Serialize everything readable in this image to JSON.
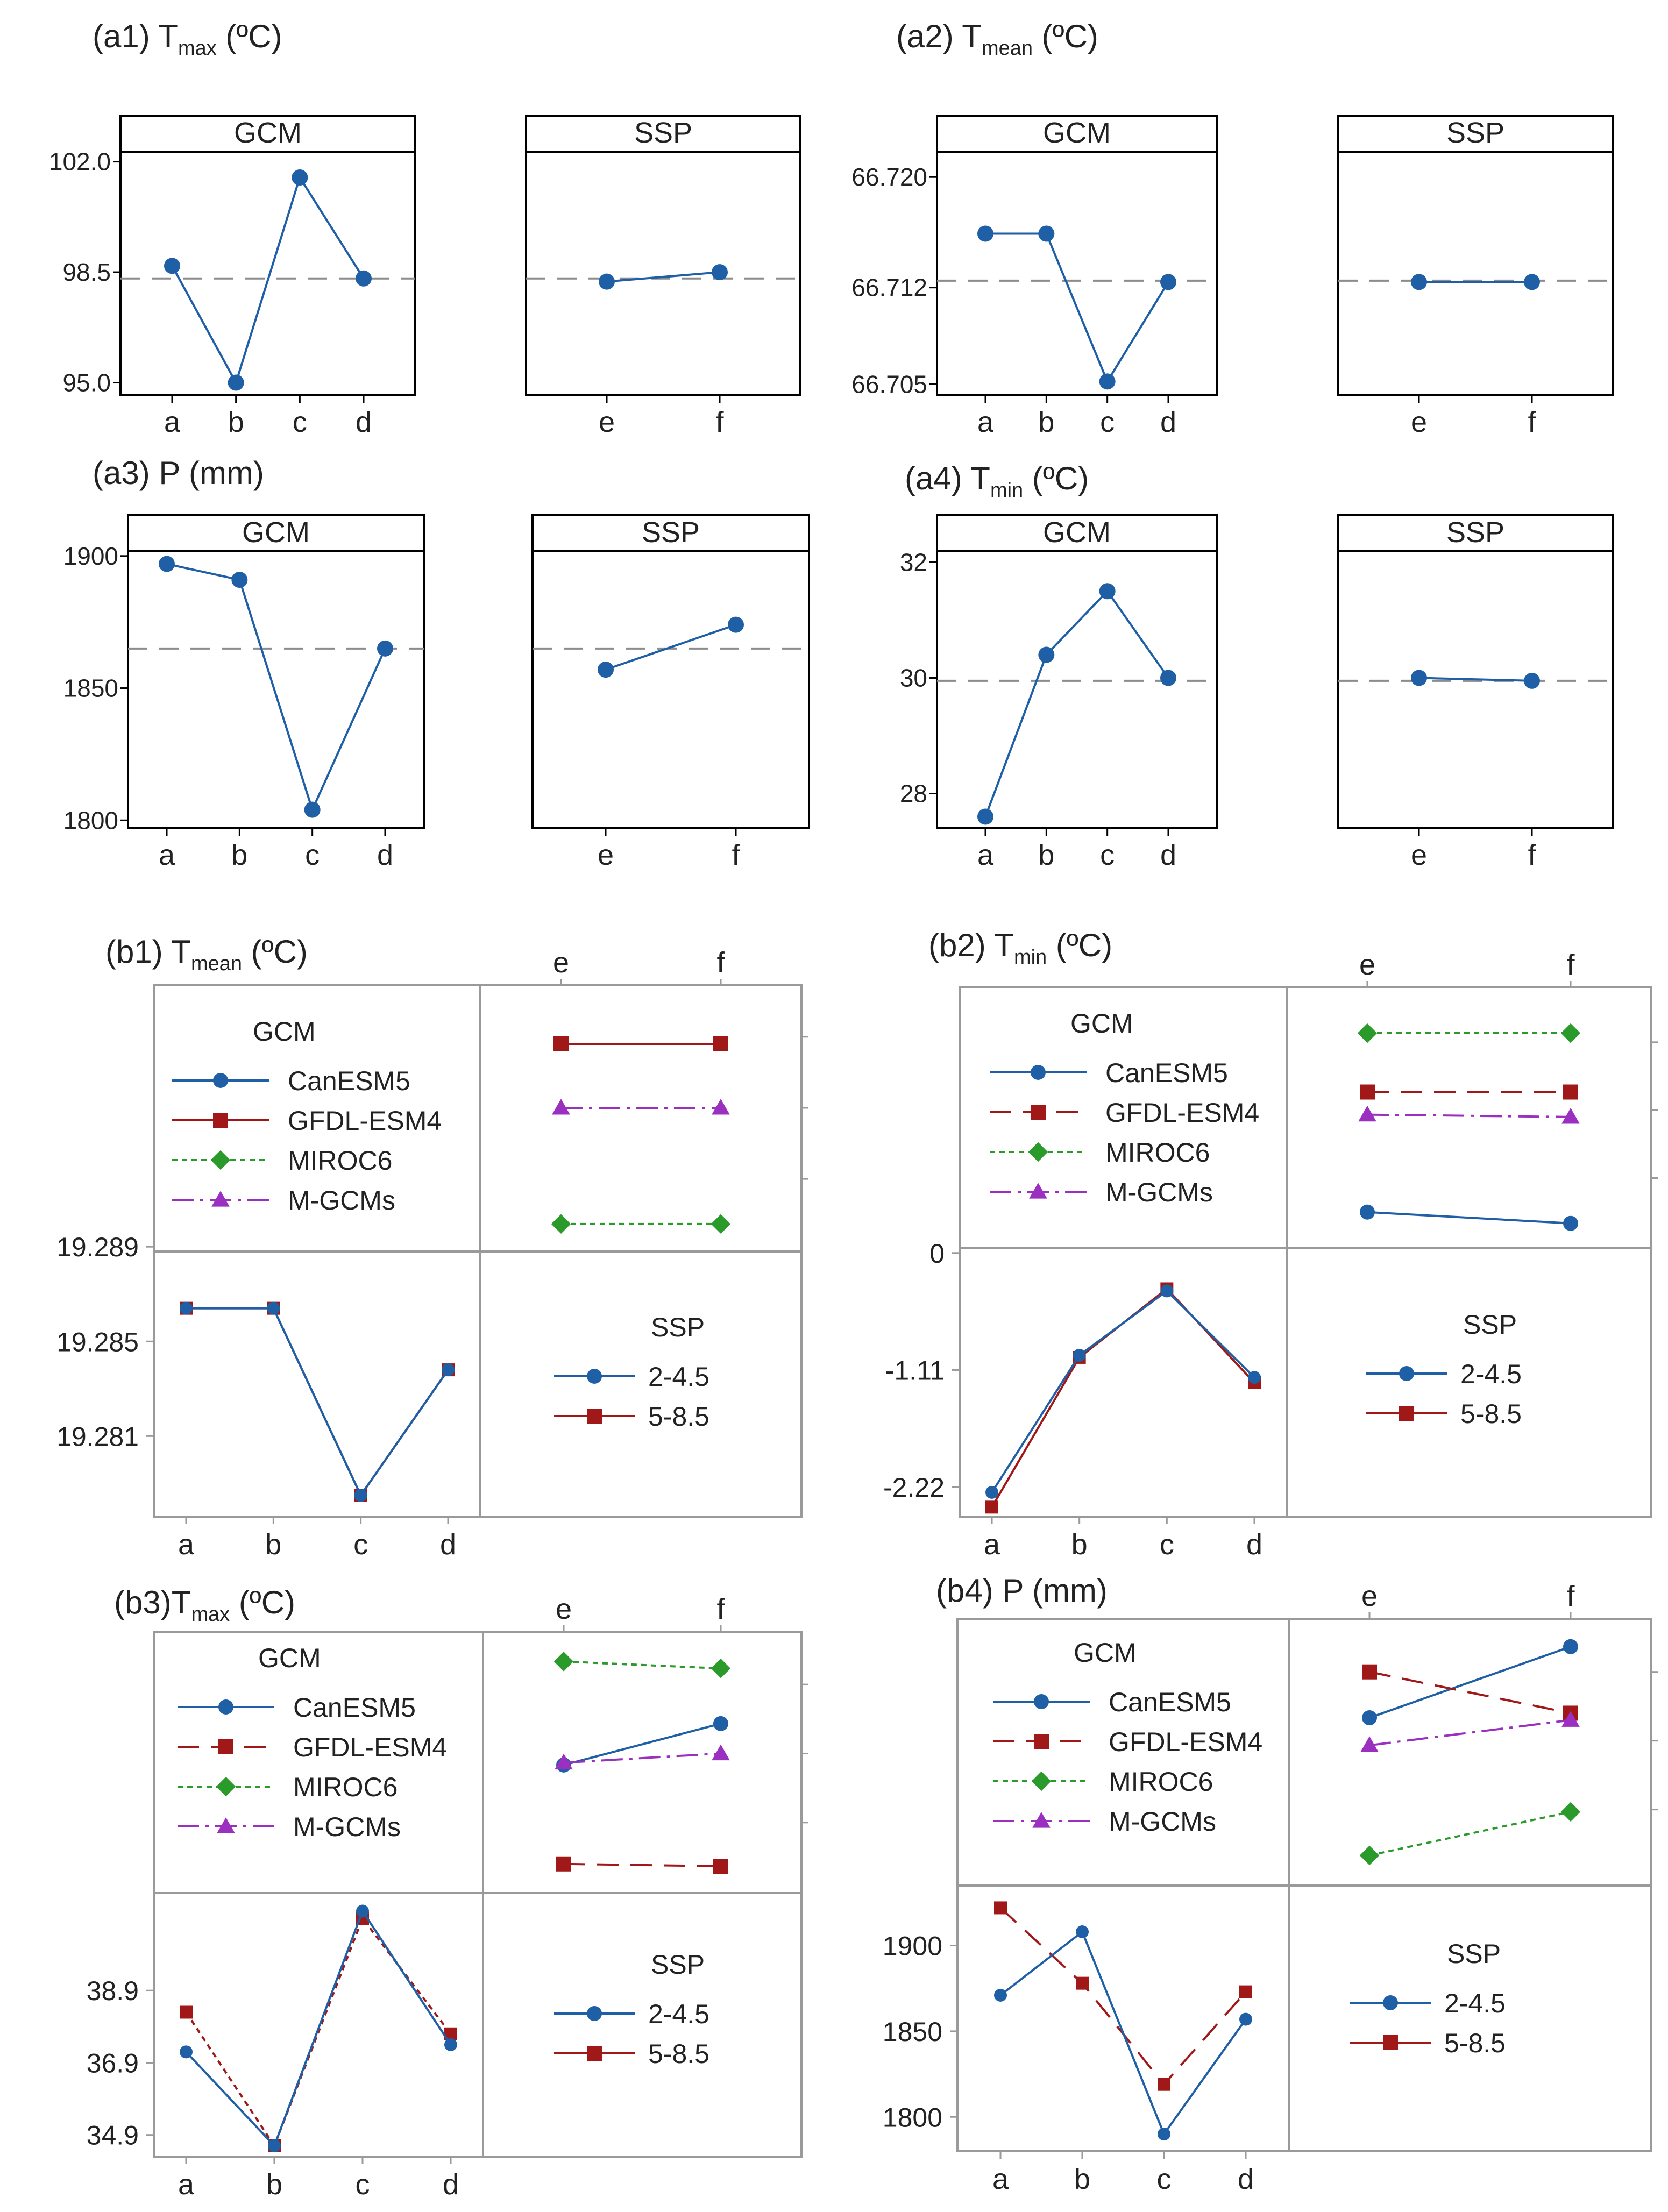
{
  "colors": {
    "blue": "#1f5fa6",
    "red": "#a01818",
    "green": "#2a9a2a",
    "purple": "#9b30c0",
    "ref_line": "#8c8c8c",
    "frame": "#000000",
    "grid_frame": "#9a9a9a"
  },
  "chart_data": [
    {
      "id": "a1",
      "type": "line",
      "title": {
        "prefix": "(a1) T",
        "sub": "max",
        "suffix": " (ºC)"
      },
      "panels": [
        {
          "header": "GCM",
          "categories": [
            "a",
            "b",
            "c",
            "d"
          ],
          "values": [
            98.7,
            95.0,
            101.5,
            98.3
          ]
        },
        {
          "header": "SSP",
          "categories": [
            "e",
            "f"
          ],
          "values": [
            98.2,
            98.5
          ]
        }
      ],
      "mean": 98.3,
      "ylim": [
        94.6,
        102.3
      ],
      "yticks": [
        95.0,
        98.5,
        102.0
      ],
      "ytick_labels": [
        "95.0",
        "98.5",
        "102.0"
      ]
    },
    {
      "id": "a2",
      "type": "line",
      "title": {
        "prefix": "(a2) T",
        "sub": "mean",
        "suffix": " (ºC)"
      },
      "panels": [
        {
          "header": "GCM",
          "categories": [
            "a",
            "b",
            "c",
            "d"
          ],
          "values": [
            66.7159,
            66.7159,
            66.7052,
            66.7124
          ]
        },
        {
          "header": "SSP",
          "categories": [
            "e",
            "f"
          ],
          "values": [
            66.7124,
            66.7124
          ]
        }
      ],
      "mean": 66.7125,
      "ylim": [
        66.7042,
        66.7218
      ],
      "yticks": [
        66.705,
        66.712,
        66.72
      ],
      "ytick_labels": [
        "66.705",
        "66.712",
        "66.720"
      ]
    },
    {
      "id": "a3",
      "type": "line",
      "title": {
        "prefix": "(a3) P (mm)",
        "sub": "",
        "suffix": ""
      },
      "panels": [
        {
          "header": "GCM",
          "categories": [
            "a",
            "b",
            "c",
            "d"
          ],
          "values": [
            1897,
            1891,
            1804,
            1865
          ]
        },
        {
          "header": "SSP",
          "categories": [
            "e",
            "f"
          ],
          "values": [
            1857,
            1874
          ]
        }
      ],
      "mean": 1865,
      "ylim": [
        1797,
        1902
      ],
      "yticks": [
        1800,
        1850,
        1900
      ],
      "ytick_labels": [
        "1800",
        "1850",
        "1900"
      ]
    },
    {
      "id": "a4",
      "type": "line",
      "title": {
        "prefix": "(a4) T",
        "sub": "min",
        "suffix": " (ºC)"
      },
      "panels": [
        {
          "header": "GCM",
          "categories": [
            "a",
            "b",
            "c",
            "d"
          ],
          "values": [
            27.6,
            30.4,
            31.5,
            30.0
          ]
        },
        {
          "header": "SSP",
          "categories": [
            "e",
            "f"
          ],
          "values": [
            30.0,
            29.95
          ]
        }
      ],
      "mean": 29.95,
      "ylim": [
        27.4,
        32.2
      ],
      "yticks": [
        28,
        30,
        32
      ],
      "ytick_labels": [
        "28",
        "30",
        "32"
      ]
    },
    {
      "id": "b1",
      "type": "interaction",
      "title": {
        "prefix": "(b1) T",
        "sub": "mean",
        "suffix": " (ºC)"
      },
      "gcm_legend_title": "GCM",
      "gcm_series": [
        {
          "name": "CanESM5",
          "color": "blue",
          "marker": "circle",
          "dash": "",
          "values": [
            null,
            null
          ]
        },
        {
          "name": "GFDL-ESM4",
          "color": "red",
          "marker": "square",
          "dash": "",
          "values": [
            0.82,
            0.82
          ]
        },
        {
          "name": "MIROC6",
          "color": "green",
          "marker": "diamond",
          "dash": "10,8",
          "values": [
            0.06,
            0.06
          ]
        },
        {
          "name": "M-GCMs",
          "color": "purple",
          "marker": "triangle",
          "dash": "40,12,6,12",
          "values": [
            0.55,
            0.55
          ]
        }
      ],
      "ssp_legend_title": "SSP",
      "ssp_series": [
        {
          "name": "2-4.5",
          "color": "blue",
          "marker": "circle",
          "dash": "",
          "values": [
            19.2864,
            19.2864,
            19.2785,
            19.2838
          ]
        },
        {
          "name": "5-8.5",
          "color": "red",
          "marker": "square",
          "dash": "",
          "values": [
            19.2864,
            19.2864,
            19.2785,
            19.2838
          ]
        }
      ],
      "top_categories": [
        "e",
        "f"
      ],
      "bottom_categories": [
        "a",
        "b",
        "c",
        "d"
      ],
      "ylim": [
        19.2776,
        19.2888
      ],
      "yticks": [
        19.281,
        19.285,
        19.289
      ],
      "ytick_labels": [
        "19.281",
        "19.285",
        "19.289"
      ]
    },
    {
      "id": "b2",
      "type": "interaction",
      "title": {
        "prefix": "(b2) T",
        "sub": "min",
        "suffix": " (ºC)"
      },
      "gcm_legend_title": "GCM",
      "gcm_series": [
        {
          "name": "CanESM5",
          "color": "blue",
          "marker": "circle",
          "dash": "",
          "values": [
            0.1,
            0.05
          ]
        },
        {
          "name": "GFDL-ESM4",
          "color": "red",
          "marker": "square",
          "dash": "40,22",
          "values": [
            0.63,
            0.63
          ]
        },
        {
          "name": "MIROC6",
          "color": "green",
          "marker": "diamond",
          "dash": "10,8",
          "values": [
            0.89,
            0.89
          ]
        },
        {
          "name": "M-GCMs",
          "color": "purple",
          "marker": "triangle",
          "dash": "40,12,6,12",
          "values": [
            0.53,
            0.52
          ]
        }
      ],
      "ssp_legend_title": "SSP",
      "ssp_series": [
        {
          "name": "2-4.5",
          "color": "blue",
          "marker": "circle",
          "dash": "",
          "values": [
            -2.27,
            -0.97,
            -0.36,
            -1.18
          ]
        },
        {
          "name": "5-8.5",
          "color": "red",
          "marker": "square",
          "dash": "",
          "values": [
            -2.41,
            -0.99,
            -0.34,
            -1.23
          ]
        }
      ],
      "top_categories": [
        "e",
        "f"
      ],
      "bottom_categories": [
        "a",
        "b",
        "c",
        "d"
      ],
      "ylim": [
        -2.5,
        0.05
      ],
      "yticks": [
        -2.22,
        -1.11,
        0
      ],
      "ytick_labels": [
        "-2.22",
        "-1.11",
        "0"
      ]
    },
    {
      "id": "b3",
      "type": "interaction",
      "title": {
        "prefix": "(b3)T",
        "sub": "max",
        "suffix": " (ºC)"
      },
      "gcm_legend_title": "GCM",
      "gcm_series": [
        {
          "name": "CanESM5",
          "color": "blue",
          "marker": "circle",
          "dash": "",
          "values": [
            0.5,
            0.68
          ]
        },
        {
          "name": "GFDL-ESM4",
          "color": "red",
          "marker": "square",
          "dash": "40,22",
          "values": [
            0.07,
            0.06
          ]
        },
        {
          "name": "MIROC6",
          "color": "green",
          "marker": "diamond",
          "dash": "10,8",
          "values": [
            0.95,
            0.92
          ]
        },
        {
          "name": "M-GCMs",
          "color": "purple",
          "marker": "triangle",
          "dash": "40,12,6,12",
          "values": [
            0.51,
            0.55
          ]
        }
      ],
      "ssp_legend_title": "SSP",
      "ssp_series": [
        {
          "name": "2-4.5",
          "color": "blue",
          "marker": "circle",
          "dash": "",
          "values": [
            37.2,
            34.6,
            41.1,
            37.4
          ]
        },
        {
          "name": "5-8.5",
          "color": "red",
          "marker": "square",
          "dash": "10,8",
          "values": [
            38.3,
            34.6,
            40.9,
            37.7
          ]
        }
      ],
      "top_categories": [
        "e",
        "f"
      ],
      "bottom_categories": [
        "a",
        "b",
        "c",
        "d"
      ],
      "ylim": [
        34.3,
        41.6
      ],
      "yticks": [
        34.9,
        36.9,
        38.9
      ],
      "ytick_labels": [
        "34.9",
        "36.9",
        "38.9"
      ]
    },
    {
      "id": "b4",
      "type": "interaction",
      "title": {
        "prefix": "(b4) P (mm)",
        "sub": "",
        "suffix": ""
      },
      "gcm_legend_title": "GCM",
      "gcm_series": [
        {
          "name": "CanESM5",
          "color": "blue",
          "marker": "circle",
          "dash": "",
          "values": [
            0.65,
            0.96
          ]
        },
        {
          "name": "GFDL-ESM4",
          "color": "red",
          "marker": "square",
          "dash": "40,22",
          "values": [
            0.85,
            0.67
          ]
        },
        {
          "name": "MIROC6",
          "color": "green",
          "marker": "diamond",
          "dash": "10,8",
          "values": [
            0.05,
            0.24
          ]
        },
        {
          "name": "M-GCMs",
          "color": "purple",
          "marker": "triangle",
          "dash": "40,12,6,12",
          "values": [
            0.53,
            0.64
          ]
        }
      ],
      "ssp_legend_title": "SSP",
      "ssp_series": [
        {
          "name": "2-4.5",
          "color": "blue",
          "marker": "circle",
          "dash": "",
          "values": [
            1871,
            1908,
            1790,
            1857
          ]
        },
        {
          "name": "5-8.5",
          "color": "red",
          "marker": "square",
          "dash": "40,22",
          "values": [
            1922,
            1878,
            1819,
            1873
          ]
        }
      ],
      "top_categories": [
        "e",
        "f"
      ],
      "bottom_categories": [
        "a",
        "b",
        "c",
        "d"
      ],
      "ylim": [
        1780,
        1935
      ],
      "yticks": [
        1800,
        1850,
        1900
      ],
      "ytick_labels": [
        "1800",
        "1850",
        "1900"
      ]
    }
  ]
}
